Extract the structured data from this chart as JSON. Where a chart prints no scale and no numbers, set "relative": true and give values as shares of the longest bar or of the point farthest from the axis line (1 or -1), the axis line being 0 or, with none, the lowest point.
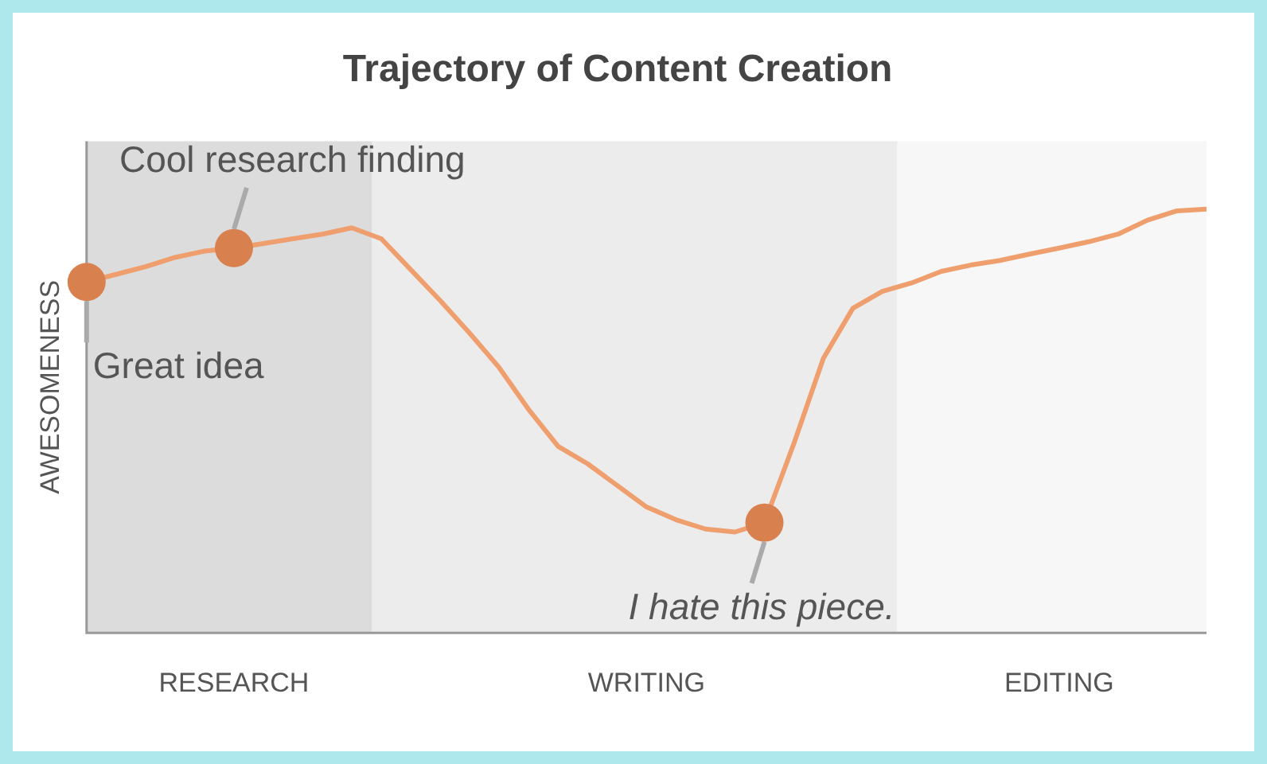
{
  "chart_data": {
    "type": "line",
    "title": "Trajectory of Content Creation",
    "ylabel": "AWESOMENESS",
    "relative": true,
    "legend": false,
    "line_style": "solid",
    "categories": [
      null,
      null,
      null,
      null,
      null,
      "RESEARCH",
      null,
      null,
      null,
      null,
      null,
      null,
      null,
      null,
      null,
      null,
      null,
      null,
      null,
      "WRITING",
      null,
      null,
      null,
      null,
      null,
      null,
      null,
      null,
      null,
      null,
      null,
      null,
      null,
      "EDITING",
      null,
      null,
      null,
      null,
      null
    ],
    "series": [
      {
        "color": "#ef9f6e",
        "values": [
          0.828,
          0.846,
          0.864,
          0.886,
          0.901,
          0.908,
          0.919,
          0.93,
          0.941,
          0.956,
          0.93,
          0.857,
          0.784,
          0.707,
          0.626,
          0.527,
          0.44,
          0.399,
          0.348,
          0.297,
          0.267,
          0.245,
          0.238,
          0.26,
          0.447,
          0.648,
          0.766,
          0.806,
          0.826,
          0.853,
          0.868,
          0.879,
          0.894,
          0.908,
          0.923,
          0.941,
          0.974,
          0.996,
          1
        ]
      }
    ],
    "annotations": [
      "Great idea",
      {
        "text": "Cool research finding",
        "y": 0.908
      },
      {
        "text": "I hate this piece.",
        "y": 0.26
      }
    ]
  }
}
